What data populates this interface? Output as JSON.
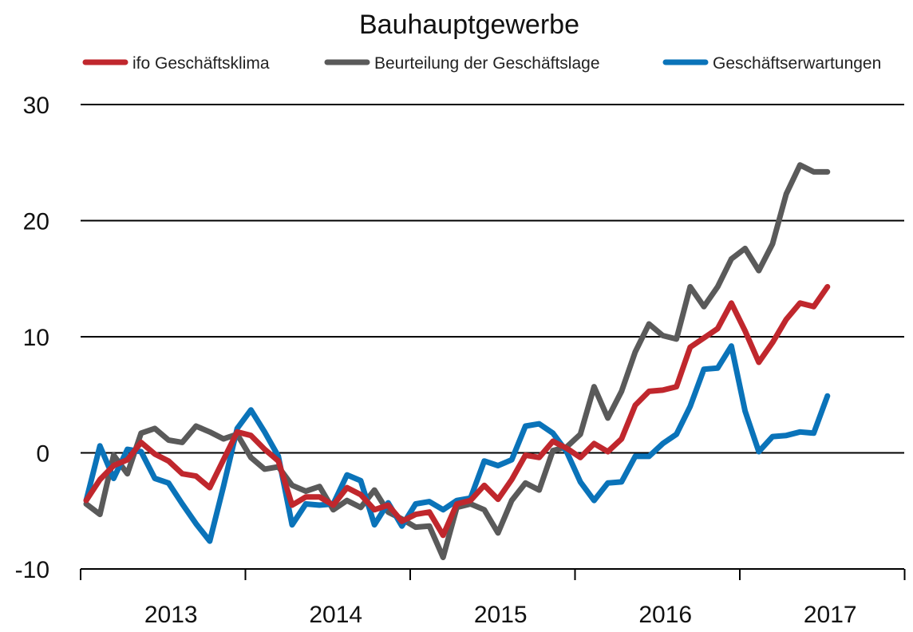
{
  "chart_data": {
    "type": "line",
    "title": "Bauhauptgewerbe",
    "xlabel": "",
    "ylabel": "",
    "ylim": [
      -10,
      30
    ],
    "yticks": [
      30,
      20,
      10,
      0,
      -10
    ],
    "ytick_labels": [
      "30",
      "20",
      "10",
      "0",
      "-10"
    ],
    "year_labels": [
      "2013",
      "2014",
      "2015",
      "2016",
      "2017"
    ],
    "grid": true,
    "legend_position": "top",
    "months_start": "2013-01",
    "series": [
      {
        "name": "ifo Geschäftsklima",
        "color": "#c0272d",
        "values": [
          -4.1,
          -2.3,
          -1.1,
          -0.6,
          0.9,
          -0.1,
          -0.7,
          -1.8,
          -2.0,
          -3.0,
          -0.6,
          1.8,
          1.5,
          0.3,
          -0.7,
          -4.5,
          -3.8,
          -3.8,
          -4.5,
          -3.0,
          -3.6,
          -4.9,
          -4.5,
          -5.9,
          -5.3,
          -5.1,
          -7.1,
          -4.4,
          -4.1,
          -2.8,
          -4.0,
          -2.3,
          -0.2,
          -0.4,
          1.0,
          0.4,
          -0.4,
          0.8,
          0.1,
          1.2,
          4.1,
          5.3,
          5.4,
          5.7,
          9.1,
          9.9,
          10.7,
          12.9,
          10.5,
          7.8,
          9.5,
          11.5,
          12.9,
          12.6,
          14.3
        ]
      },
      {
        "name": "Beurteilung der Geschäftslage",
        "color": "#5a5a5a",
        "values": [
          -4.4,
          -5.3,
          -0.2,
          -1.8,
          1.7,
          2.1,
          1.1,
          0.9,
          2.3,
          1.8,
          1.2,
          1.6,
          -0.4,
          -1.4,
          -1.2,
          -2.8,
          -3.3,
          -2.9,
          -4.9,
          -4.1,
          -4.7,
          -3.2,
          -5.1,
          -5.7,
          -6.4,
          -6.3,
          -9.0,
          -4.7,
          -4.4,
          -4.9,
          -6.9,
          -4.1,
          -2.6,
          -3.2,
          0.2,
          0.5,
          1.6,
          5.7,
          3.0,
          5.3,
          8.7,
          11.1,
          10.1,
          9.8,
          14.3,
          12.6,
          14.3,
          16.7,
          17.6,
          15.7,
          18.0,
          22.3,
          24.8,
          24.2,
          24.2
        ]
      },
      {
        "name": "Geschäftserwartungen",
        "color": "#0a73b9",
        "values": [
          -4.1,
          0.6,
          -2.2,
          0.3,
          0.1,
          -2.2,
          -2.6,
          -4.4,
          -6.1,
          -7.6,
          -2.9,
          2.1,
          3.7,
          1.8,
          -0.3,
          -6.2,
          -4.4,
          -4.5,
          -4.4,
          -1.9,
          -2.4,
          -6.2,
          -4.3,
          -6.3,
          -4.4,
          -4.2,
          -4.9,
          -4.1,
          -3.9,
          -0.7,
          -1.1,
          -0.6,
          2.3,
          2.5,
          1.7,
          0.1,
          -2.5,
          -4.1,
          -2.6,
          -2.5,
          -0.3,
          -0.3,
          0.8,
          1.6,
          4.0,
          7.2,
          7.3,
          9.2,
          3.6,
          0.1,
          1.4,
          1.5,
          1.8,
          1.7,
          4.9
        ]
      }
    ]
  }
}
